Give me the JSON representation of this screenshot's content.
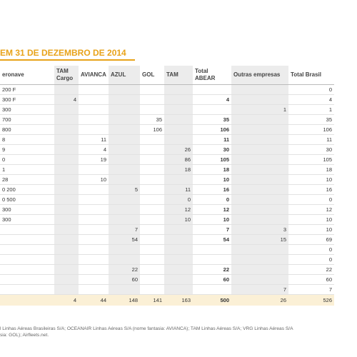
{
  "title": "EM 31 DE DEZEMBRO DE 2014",
  "columns": [
    "eronave",
    "TAM Cargo",
    "AVIANCA",
    "AZUL",
    "GOL",
    "TAM",
    "Total ABEAR",
    "Outras empresas",
    "Total Brasil"
  ],
  "rows": [
    {
      "model": "200 F",
      "tam_cargo": "",
      "avianca": "",
      "azul": "",
      "gol": "",
      "tam": "",
      "total_abear": "",
      "outras": "",
      "total_brasil": "0"
    },
    {
      "model": "300 F",
      "tam_cargo": "4",
      "avianca": "",
      "azul": "",
      "gol": "",
      "tam": "",
      "total_abear": "4",
      "outras": "",
      "total_brasil": "4"
    },
    {
      "model": "300",
      "tam_cargo": "",
      "avianca": "",
      "azul": "",
      "gol": "",
      "tam": "",
      "total_abear": "",
      "outras": "1",
      "total_brasil": "1"
    },
    {
      "model": "700",
      "tam_cargo": "",
      "avianca": "",
      "azul": "",
      "gol": "35",
      "tam": "",
      "total_abear": "35",
      "outras": "",
      "total_brasil": "35"
    },
    {
      "model": "800",
      "tam_cargo": "",
      "avianca": "",
      "azul": "",
      "gol": "106",
      "tam": "",
      "total_abear": "106",
      "outras": "",
      "total_brasil": "106"
    },
    {
      "model": "8",
      "tam_cargo": "",
      "avianca": "11",
      "azul": "",
      "gol": "",
      "tam": "",
      "total_abear": "11",
      "outras": "",
      "total_brasil": "11"
    },
    {
      "model": "9",
      "tam_cargo": "",
      "avianca": "4",
      "azul": "",
      "gol": "",
      "tam": "26",
      "total_abear": "30",
      "outras": "",
      "total_brasil": "30"
    },
    {
      "model": "0",
      "tam_cargo": "",
      "avianca": "19",
      "azul": "",
      "gol": "",
      "tam": "86",
      "total_abear": "105",
      "outras": "",
      "total_brasil": "105"
    },
    {
      "model": "1",
      "tam_cargo": "",
      "avianca": "",
      "azul": "",
      "gol": "",
      "tam": "18",
      "total_abear": "18",
      "outras": "",
      "total_brasil": "18"
    },
    {
      "model": "28",
      "tam_cargo": "",
      "avianca": "10",
      "azul": "",
      "gol": "",
      "tam": "",
      "total_abear": "10",
      "outras": "",
      "total_brasil": "10"
    },
    {
      "model": "0 200",
      "tam_cargo": "",
      "avianca": "",
      "azul": "5",
      "gol": "",
      "tam": "11",
      "total_abear": "16",
      "outras": "",
      "total_brasil": "16"
    },
    {
      "model": "0 500",
      "tam_cargo": "",
      "avianca": "",
      "azul": "",
      "gol": "",
      "tam": "0",
      "total_abear": "0",
      "outras": "",
      "total_brasil": "0"
    },
    {
      "model": "300",
      "tam_cargo": "",
      "avianca": "",
      "azul": "",
      "gol": "",
      "tam": "12",
      "total_abear": "12",
      "outras": "",
      "total_brasil": "12"
    },
    {
      "model": "300",
      "tam_cargo": "",
      "avianca": "",
      "azul": "",
      "gol": "",
      "tam": "10",
      "total_abear": "10",
      "outras": "",
      "total_brasil": "10"
    },
    {
      "model": "",
      "tam_cargo": "",
      "avianca": "",
      "azul": "7",
      "gol": "",
      "tam": "",
      "total_abear": "7",
      "outras": "3",
      "total_brasil": "10"
    },
    {
      "model": "",
      "tam_cargo": "",
      "avianca": "",
      "azul": "54",
      "gol": "",
      "tam": "",
      "total_abear": "54",
      "outras": "15",
      "total_brasil": "69"
    },
    {
      "model": "",
      "tam_cargo": "",
      "avianca": "",
      "azul": "",
      "gol": "",
      "tam": "",
      "total_abear": "",
      "outras": "",
      "total_brasil": "0"
    },
    {
      "model": "",
      "tam_cargo": "",
      "avianca": "",
      "azul": "",
      "gol": "",
      "tam": "",
      "total_abear": "",
      "outras": "",
      "total_brasil": "0"
    },
    {
      "model": "",
      "tam_cargo": "",
      "avianca": "",
      "azul": "22",
      "gol": "",
      "tam": "",
      "total_abear": "22",
      "outras": "",
      "total_brasil": "22"
    },
    {
      "model": "",
      "tam_cargo": "",
      "avianca": "",
      "azul": "60",
      "gol": "",
      "tam": "",
      "total_abear": "60",
      "outras": "",
      "total_brasil": "60"
    },
    {
      "model": "",
      "tam_cargo": "",
      "avianca": "",
      "azul": "",
      "gol": "",
      "tam": "",
      "total_abear": "",
      "outras": "7",
      "total_brasil": "7"
    }
  ],
  "totals": {
    "tam_cargo": "4",
    "avianca": "44",
    "azul": "148",
    "gol": "141",
    "tam": "163",
    "total_abear": "500",
    "outras": "26",
    "total_brasil": "526"
  },
  "footnote_line1": "l Linhas Aéreas Brasileiras S/A; OCEANAIR Linhas Aéreas S/A (nome fantasia: AVIANCA); TAM Linhas Aéreas S/A; VRG Linhas Aéreas S/A",
  "footnote_line2": "sia: GOL); Airfleets.net.",
  "accent_color": "#e8a31a",
  "total_row_color": "#fbf0d6",
  "shade_color": "#ececec"
}
